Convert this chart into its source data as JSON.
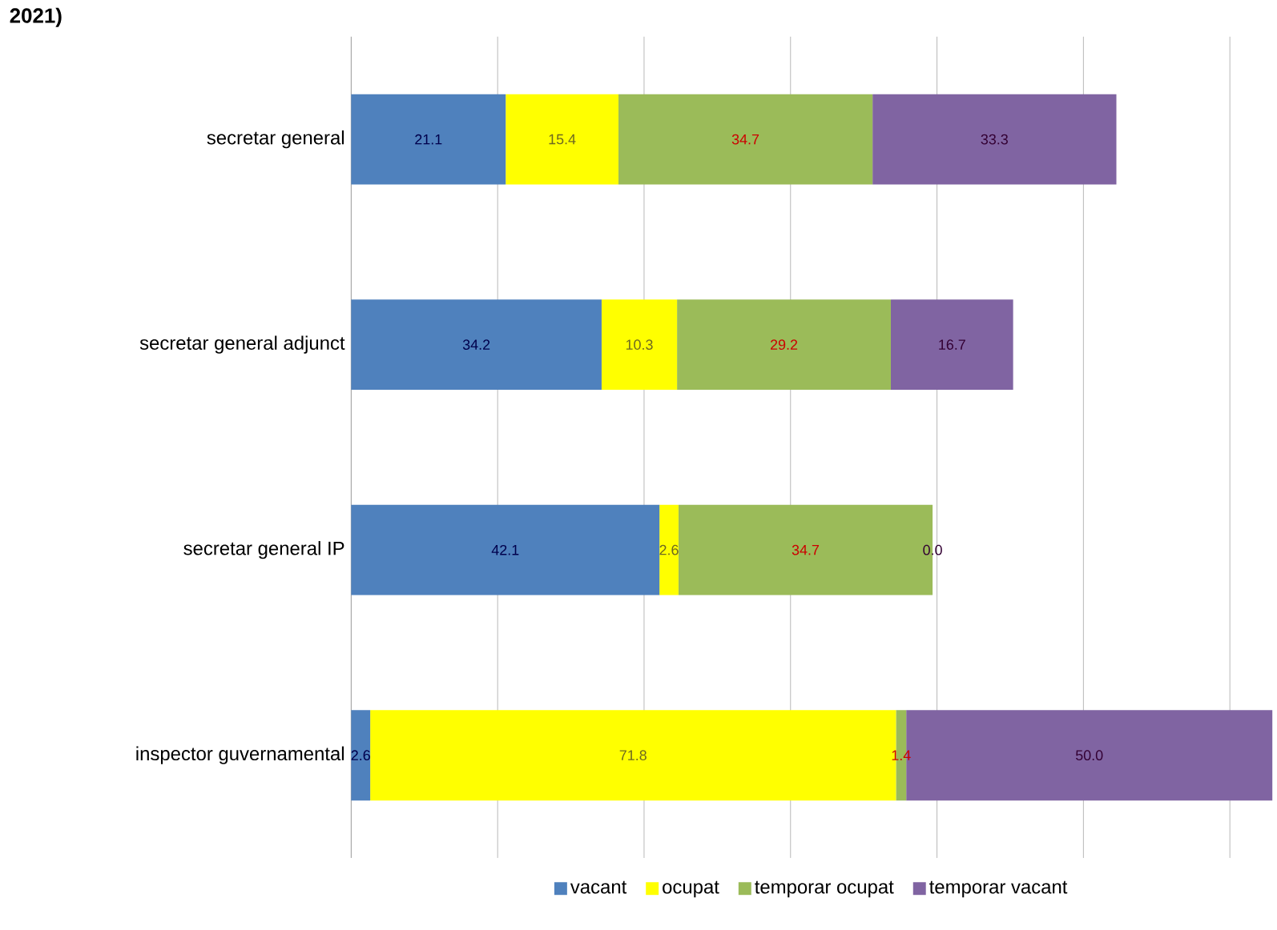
{
  "chart_data": {
    "type": "bar",
    "orientation": "horizontal",
    "stacked": true,
    "title": "2021)",
    "categories": [
      "secretar general",
      "secretar general adjunct",
      "secretar general IP",
      "inspector guvernamental"
    ],
    "series": [
      {
        "name": "vacant",
        "color": "#4f81bd",
        "values": [
          21.1,
          34.2,
          42.1,
          2.6
        ],
        "value_labels": [
          "21.1",
          "34.2",
          "42.1",
          "2.6"
        ]
      },
      {
        "name": "ocupat",
        "color": "#ffff00",
        "values": [
          15.4,
          10.3,
          2.6,
          71.8
        ],
        "value_labels": [
          "15.4",
          "10.3",
          "2.6",
          "71.8"
        ]
      },
      {
        "name": "temporar ocupat",
        "color": "#9bbb59",
        "values": [
          34.7,
          29.2,
          34.7,
          1.4
        ],
        "value_labels": [
          "34.7",
          "29.2",
          "34.7",
          "1.4"
        ]
      },
      {
        "name": "temporar vacant",
        "color": "#8064a2",
        "values": [
          33.3,
          16.7,
          0.0,
          50.0
        ],
        "value_labels": [
          "33.3",
          "16.7",
          "0.0",
          "50.0"
        ]
      }
    ],
    "xlim": [
      0,
      126
    ],
    "xticks": [
      {
        "value": 20,
        "label": null
      },
      {
        "value": 40,
        "label": null
      },
      {
        "value": 60,
        "label": null
      },
      {
        "value": 80,
        "label": null
      },
      {
        "value": 100,
        "label": null
      },
      {
        "value": 120,
        "label": null
      }
    ],
    "grid": "x",
    "legend": "bottom",
    "tick_labels": "y"
  }
}
